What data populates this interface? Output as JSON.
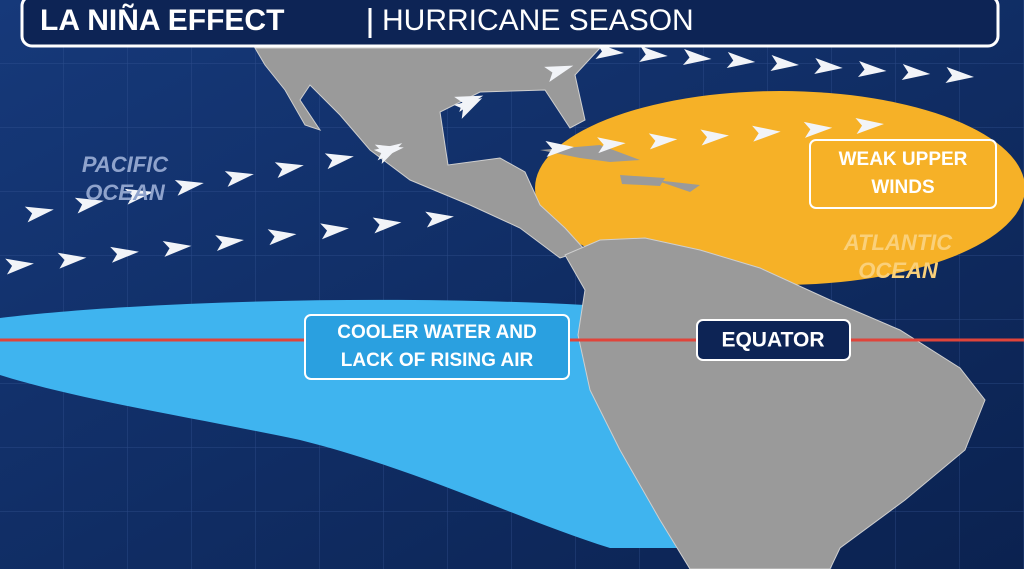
{
  "header": {
    "title": "LA NIÑA EFFECT",
    "subtitle": "HURRICANE SEASON"
  },
  "labels": {
    "pacific": [
      "PACIFIC",
      "OCEAN"
    ],
    "atlantic": [
      "ATLANTIC",
      "OCEAN"
    ],
    "weak_winds": [
      "WEAK UPPER",
      "WINDS"
    ],
    "cooler_water": [
      "COOLER WATER AND",
      "LACK OF RISING AIR"
    ],
    "equator": "EQUATOR"
  }
}
